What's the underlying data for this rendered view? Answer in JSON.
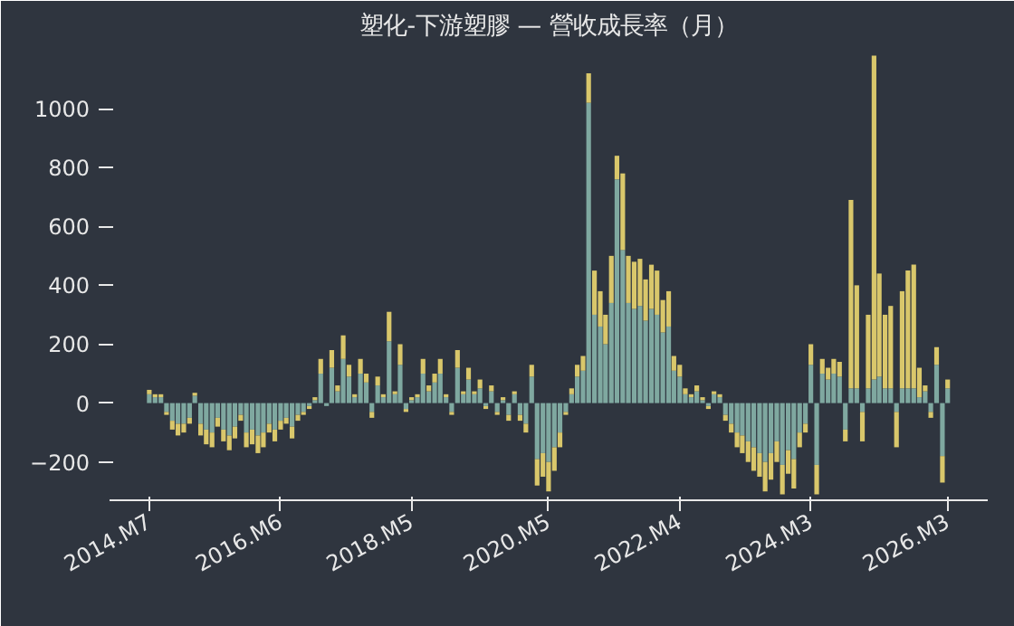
{
  "chart_data": {
    "type": "bar",
    "stacked": true,
    "title": "塑化-下游塑膠 — 營收成長率（月）",
    "x": [
      "2014-07",
      "2014-08",
      "2014-09",
      "2014-10",
      "2014-11",
      "2014-12",
      "2015-01",
      "2015-02",
      "2015-03",
      "2015-04",
      "2015-05",
      "2015-06",
      "2015-07",
      "2015-08",
      "2015-09",
      "2015-10",
      "2015-11",
      "2015-12",
      "2016-01",
      "2016-02",
      "2016-03",
      "2016-04",
      "2016-05",
      "2016-06",
      "2016-07",
      "2016-08",
      "2016-09",
      "2016-10",
      "2016-11",
      "2016-12",
      "2017-01",
      "2017-02",
      "2017-03",
      "2017-04",
      "2017-05",
      "2017-06",
      "2017-07",
      "2017-08",
      "2017-09",
      "2017-10",
      "2017-11",
      "2017-12",
      "2018-01",
      "2018-02",
      "2018-03",
      "2018-04",
      "2018-05",
      "2018-06",
      "2018-07",
      "2018-08",
      "2018-09",
      "2018-10",
      "2018-11",
      "2018-12",
      "2019-01",
      "2019-02",
      "2019-03",
      "2019-04",
      "2019-05",
      "2019-06",
      "2019-07",
      "2019-08",
      "2019-09",
      "2019-10",
      "2019-11",
      "2019-12",
      "2020-01",
      "2020-02",
      "2020-03",
      "2020-04",
      "2020-05",
      "2020-06",
      "2020-07",
      "2020-08",
      "2020-09",
      "2020-10",
      "2020-11",
      "2020-12",
      "2021-01",
      "2021-02",
      "2021-03",
      "2021-04",
      "2021-05",
      "2021-06",
      "2021-07",
      "2021-08",
      "2021-09",
      "2021-10",
      "2021-11",
      "2021-12",
      "2022-01",
      "2022-02",
      "2022-03",
      "2022-04",
      "2022-05",
      "2022-06",
      "2022-07",
      "2022-08",
      "2022-09",
      "2022-10",
      "2022-11",
      "2022-12",
      "2023-01",
      "2023-02",
      "2023-03",
      "2023-04",
      "2023-05",
      "2023-06",
      "2023-07",
      "2023-08",
      "2023-09",
      "2023-10",
      "2023-11",
      "2023-12",
      "2024-01",
      "2024-02",
      "2024-03",
      "2024-04",
      "2024-05",
      "2024-06",
      "2024-07",
      "2024-08",
      "2024-09",
      "2024-10",
      "2024-11",
      "2024-12",
      "2025-01",
      "2025-02",
      "2025-03",
      "2025-04",
      "2025-05",
      "2025-06",
      "2025-07",
      "2025-08",
      "2025-09",
      "2025-10",
      "2025-11",
      "2025-12",
      "2026-01",
      "2026-02",
      "2026-03"
    ],
    "series": [
      {
        "color": "#7fa8a0",
        "values": [
          30,
          20,
          20,
          -30,
          -60,
          -70,
          -70,
          -50,
          25,
          -70,
          -90,
          -100,
          -50,
          -90,
          -110,
          -80,
          -40,
          -100,
          -90,
          -110,
          -100,
          -70,
          -90,
          -60,
          -50,
          -80,
          -40,
          -30,
          -10,
          10,
          100,
          -10,
          120,
          40,
          150,
          90,
          20,
          100,
          70,
          -30,
          60,
          20,
          210,
          30,
          130,
          -20,
          10,
          20,
          100,
          40,
          70,
          100,
          20,
          -30,
          120,
          30,
          80,
          30,
          50,
          -10,
          40,
          -30,
          10,
          -40,
          30,
          -40,
          -70,
          90,
          -190,
          -170,
          -200,
          -150,
          -100,
          -30,
          30,
          90,
          110,
          1020,
          300,
          260,
          200,
          340,
          760,
          520,
          340,
          320,
          330,
          280,
          320,
          300,
          240,
          260,
          110,
          90,
          30,
          20,
          40,
          10,
          -10,
          30,
          20,
          -40,
          -70,
          -100,
          -110,
          -130,
          -150,
          -170,
          -200,
          -170,
          -130,
          -210,
          -160,
          -190,
          -100,
          -70,
          130,
          -210,
          100,
          80,
          100,
          90,
          -90,
          50,
          50,
          -30,
          50,
          80,
          90,
          50,
          50,
          -30,
          50,
          50,
          50,
          20,
          40,
          -30,
          130,
          -180,
          50
        ]
      },
      {
        "color": "#d9c76b",
        "values": [
          15,
          10,
          10,
          -10,
          -30,
          -40,
          -30,
          -20,
          10,
          -40,
          -50,
          -50,
          -30,
          -40,
          -50,
          -40,
          -20,
          -50,
          -50,
          -60,
          -50,
          -30,
          -40,
          -30,
          -20,
          -40,
          -20,
          -10,
          -10,
          10,
          50,
          0,
          60,
          20,
          80,
          40,
          10,
          50,
          30,
          -20,
          30,
          10,
          100,
          10,
          70,
          -10,
          10,
          10,
          50,
          20,
          30,
          50,
          10,
          -10,
          60,
          10,
          40,
          10,
          30,
          -10,
          20,
          -10,
          10,
          -20,
          10,
          -20,
          -30,
          40,
          -90,
          -80,
          -100,
          -80,
          -50,
          -10,
          20,
          40,
          50,
          100,
          150,
          120,
          100,
          160,
          80,
          260,
          160,
          160,
          160,
          140,
          150,
          150,
          110,
          120,
          50,
          40,
          20,
          10,
          20,
          10,
          -10,
          10,
          10,
          -20,
          -30,
          -50,
          -60,
          -70,
          -80,
          -80,
          -100,
          -90,
          -70,
          -100,
          -80,
          -100,
          -50,
          -30,
          70,
          -100,
          50,
          40,
          50,
          50,
          -40,
          640,
          350,
          -100,
          250,
          1100,
          350,
          250,
          280,
          -120,
          330,
          400,
          420,
          100,
          20,
          -20,
          60,
          -90,
          30
        ]
      }
    ],
    "xlim": [
      "2013-12",
      "2026-10"
    ],
    "xticks": [
      {
        "value": "2014-07",
        "label": "2014.M7"
      },
      {
        "value": "2016-06",
        "label": "2016.M6"
      },
      {
        "value": "2018-05",
        "label": "2018.M5"
      },
      {
        "value": "2020-05",
        "label": "2020.M5"
      },
      {
        "value": "2022-04",
        "label": "2022.M4"
      },
      {
        "value": "2024-03",
        "label": "2024.M3"
      },
      {
        "value": "2026-03",
        "label": "2026.M3"
      }
    ],
    "ylim": [
      -330,
      1200
    ],
    "yticks": [
      -200,
      0,
      200,
      400,
      600,
      800,
      1000
    ],
    "grid": false
  }
}
